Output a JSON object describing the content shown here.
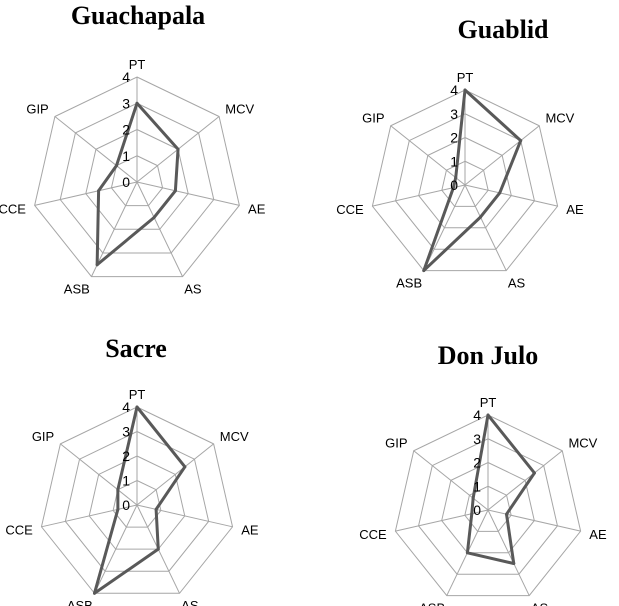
{
  "chart_data": [
    {
      "type": "radar",
      "title": "Guachapala",
      "axes": [
        "PT",
        "MCV",
        "AE",
        "AS",
        "ASB",
        "CCE",
        "GIP"
      ],
      "ticks": [
        0,
        1,
        2,
        3,
        4
      ],
      "rlim": [
        0,
        4
      ],
      "grid": true,
      "series": [
        {
          "values": [
            3.0,
            2.0,
            1.5,
            1.5,
            3.5,
            1.5,
            1.0
          ]
        }
      ]
    },
    {
      "type": "radar",
      "title": "Guablid",
      "axes": [
        "PT",
        "MCV",
        "AE",
        "AS",
        "ASB",
        "CCE",
        "GIP"
      ],
      "ticks": [
        0,
        1,
        2,
        3,
        4
      ],
      "rlim": [
        0,
        4
      ],
      "grid": true,
      "series": [
        {
          "values": [
            4.0,
            3.0,
            1.5,
            1.5,
            4.0,
            0.5,
            0.5
          ]
        }
      ]
    },
    {
      "type": "radar",
      "title": "Sacre",
      "axes": [
        "PT",
        "MCV",
        "AE",
        "AS",
        "ASB",
        "CCE",
        "GIP"
      ],
      "ticks": [
        0,
        1,
        2,
        3,
        4
      ],
      "rlim": [
        0,
        4
      ],
      "grid": true,
      "series": [
        {
          "values": [
            4.0,
            2.5,
            0.8,
            2.0,
            4.0,
            0.8,
            1.0
          ]
        }
      ]
    },
    {
      "type": "radar",
      "title": "Don Julo",
      "axes": [
        "PT",
        "MCV",
        "AE",
        "AS",
        "ASB",
        "CCE",
        "GIP"
      ],
      "ticks": [
        0,
        1,
        2,
        3,
        4
      ],
      "rlim": [
        0,
        4
      ],
      "grid": true,
      "series": [
        {
          "values": [
            4.0,
            2.5,
            0.8,
            2.5,
            2.0,
            0.7,
            0.8
          ]
        }
      ]
    }
  ]
}
